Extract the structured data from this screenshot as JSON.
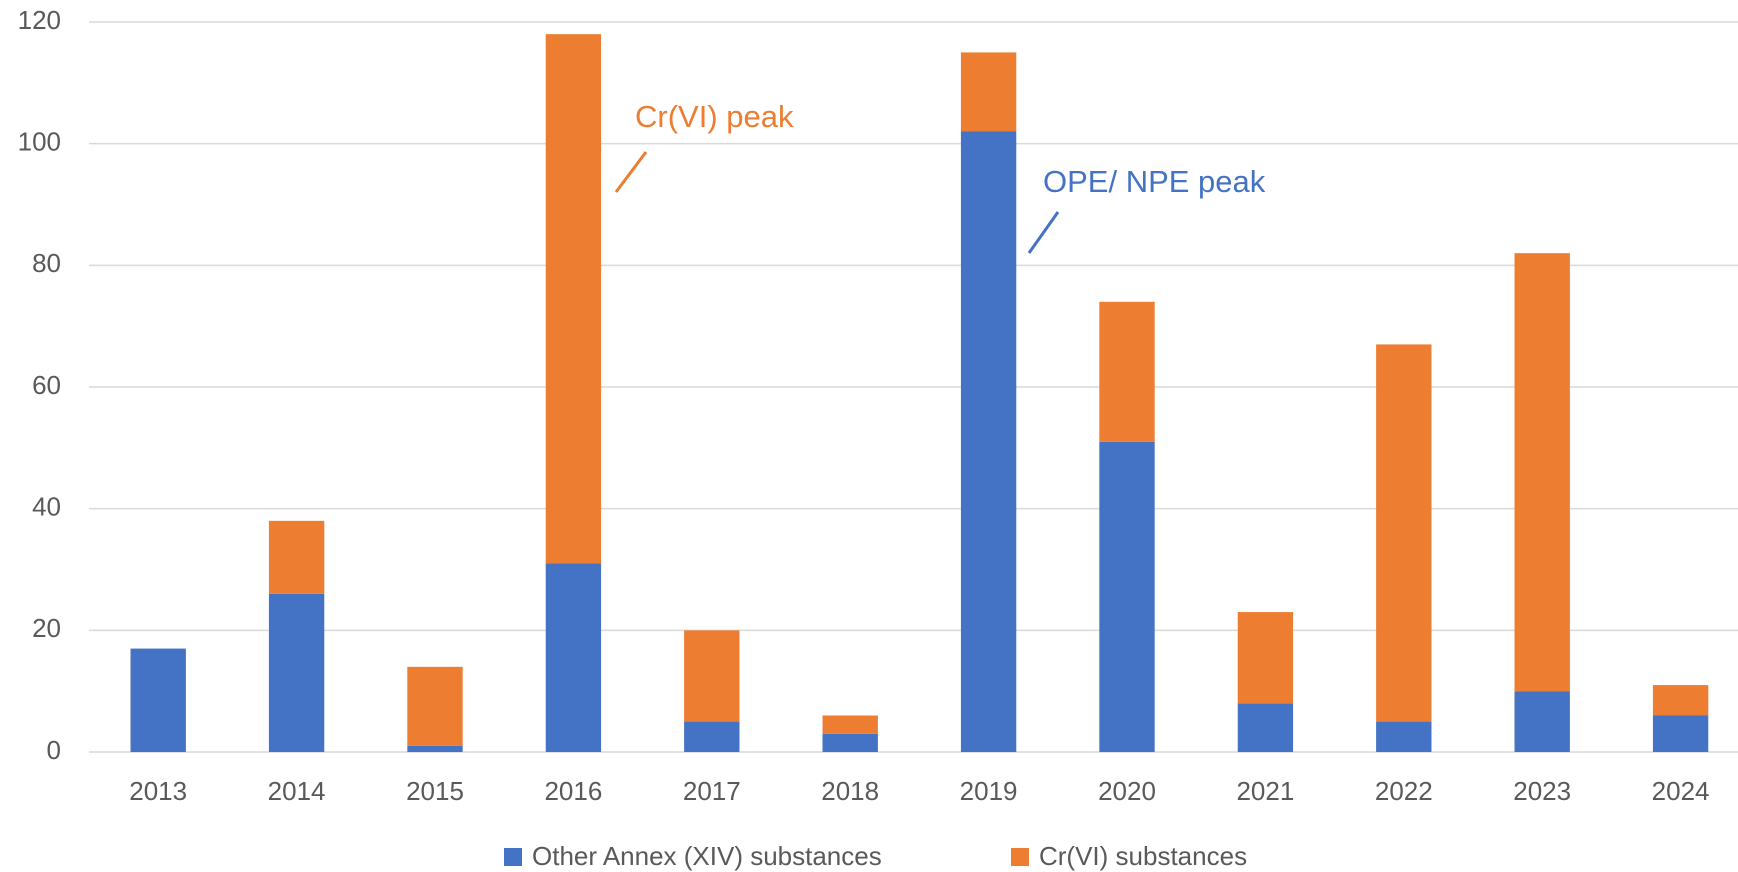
{
  "chart_data": {
    "type": "stacked_bar",
    "categories": [
      "2013",
      "2014",
      "2015",
      "2016",
      "2017",
      "2018",
      "2019",
      "2020",
      "2021",
      "2022",
      "2023",
      "2024"
    ],
    "series": [
      {
        "name": "Other Annex (XIV) substances",
        "color": "#4472c4",
        "values": [
          17,
          26,
          1,
          31,
          5,
          3,
          102,
          51,
          8,
          5,
          10,
          6
        ]
      },
      {
        "name": "Cr(VI) substances",
        "color": "#ed7d31",
        "values": [
          0,
          12,
          13,
          87,
          15,
          3,
          13,
          23,
          15,
          62,
          72,
          5
        ]
      }
    ],
    "annotations": [
      {
        "text": "Cr(VI) peak",
        "color": "#ed7d31"
      },
      {
        "text": "OPE/ NPE peak",
        "color": "#4472c4"
      }
    ],
    "ylim": [
      0,
      120
    ],
    "yticks": [
      0,
      20,
      40,
      60,
      80,
      100,
      120
    ],
    "grid": true,
    "legend": "bottom"
  }
}
